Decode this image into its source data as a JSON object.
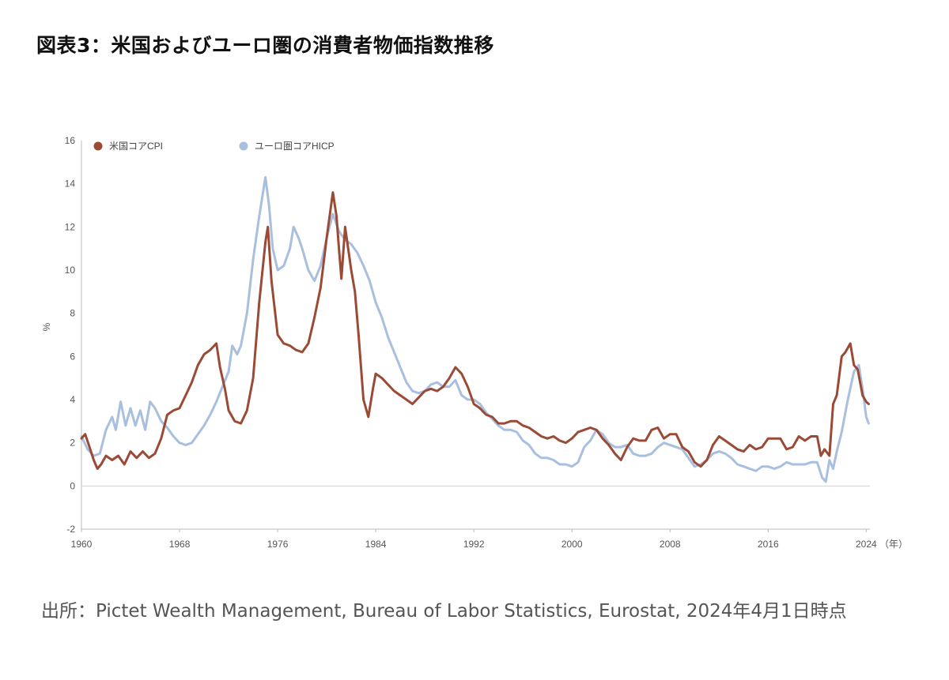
{
  "title": "図表3：米国およびユーロ圏の消費者物価指数推移",
  "source": "出所：Pictet Wealth Management, Bureau of Labor Statistics, Eurostat, 2024年4月1日時点",
  "chart_data": {
    "type": "line",
    "title": "図表3：米国およびユーロ圏の消費者物価指数推移",
    "ylabel": "%",
    "xlabel": "",
    "x_unit_label": "（年）",
    "ylim": [
      -2,
      16
    ],
    "xlim": [
      1960,
      2024.3
    ],
    "y_ticks": [
      -2,
      0,
      2,
      4,
      6,
      8,
      10,
      12,
      14,
      16
    ],
    "x_ticks": [
      1960,
      1968,
      1976,
      1984,
      1992,
      2000,
      2008,
      2016,
      2024
    ],
    "legend_position": "top-left",
    "grid": false,
    "series": [
      {
        "name": "米国コアCPI",
        "color": "#9a4a35",
        "points": [
          [
            1960.0,
            2.2
          ],
          [
            1960.3,
            2.4
          ],
          [
            1960.6,
            1.9
          ],
          [
            1961.0,
            1.2
          ],
          [
            1961.3,
            0.8
          ],
          [
            1961.6,
            1.0
          ],
          [
            1962.0,
            1.4
          ],
          [
            1962.5,
            1.2
          ],
          [
            1963.0,
            1.4
          ],
          [
            1963.5,
            1.0
          ],
          [
            1964.0,
            1.6
          ],
          [
            1964.5,
            1.3
          ],
          [
            1965.0,
            1.6
          ],
          [
            1965.5,
            1.3
          ],
          [
            1966.0,
            1.5
          ],
          [
            1966.5,
            2.2
          ],
          [
            1967.0,
            3.3
          ],
          [
            1967.5,
            3.5
          ],
          [
            1968.0,
            3.6
          ],
          [
            1968.5,
            4.2
          ],
          [
            1969.0,
            4.8
          ],
          [
            1969.5,
            5.6
          ],
          [
            1970.0,
            6.1
          ],
          [
            1970.5,
            6.3
          ],
          [
            1971.0,
            6.6
          ],
          [
            1971.3,
            5.5
          ],
          [
            1971.7,
            4.5
          ],
          [
            1972.0,
            3.5
          ],
          [
            1972.5,
            3.0
          ],
          [
            1973.0,
            2.9
          ],
          [
            1973.5,
            3.5
          ],
          [
            1974.0,
            5.0
          ],
          [
            1974.5,
            8.5
          ],
          [
            1975.0,
            11.3
          ],
          [
            1975.2,
            12.0
          ],
          [
            1975.5,
            9.5
          ],
          [
            1976.0,
            7.0
          ],
          [
            1976.5,
            6.6
          ],
          [
            1977.0,
            6.5
          ],
          [
            1977.5,
            6.3
          ],
          [
            1978.0,
            6.2
          ],
          [
            1978.5,
            6.6
          ],
          [
            1979.0,
            7.8
          ],
          [
            1979.5,
            9.2
          ],
          [
            1980.0,
            11.5
          ],
          [
            1980.5,
            13.6
          ],
          [
            1980.8,
            12.5
          ],
          [
            1981.0,
            11.0
          ],
          [
            1981.2,
            9.6
          ],
          [
            1981.5,
            12.0
          ],
          [
            1982.0,
            10.0
          ],
          [
            1982.3,
            9.0
          ],
          [
            1982.6,
            7.0
          ],
          [
            1983.0,
            4.0
          ],
          [
            1983.4,
            3.2
          ],
          [
            1983.8,
            4.6
          ],
          [
            1984.0,
            5.2
          ],
          [
            1984.5,
            5.0
          ],
          [
            1985.0,
            4.7
          ],
          [
            1985.5,
            4.4
          ],
          [
            1986.0,
            4.2
          ],
          [
            1986.5,
            4.0
          ],
          [
            1987.0,
            3.8
          ],
          [
            1987.5,
            4.1
          ],
          [
            1988.0,
            4.4
          ],
          [
            1988.5,
            4.5
          ],
          [
            1989.0,
            4.4
          ],
          [
            1989.5,
            4.6
          ],
          [
            1990.0,
            5.0
          ],
          [
            1990.5,
            5.5
          ],
          [
            1991.0,
            5.2
          ],
          [
            1991.5,
            4.6
          ],
          [
            1992.0,
            3.8
          ],
          [
            1992.5,
            3.6
          ],
          [
            1993.0,
            3.3
          ],
          [
            1993.5,
            3.2
          ],
          [
            1994.0,
            2.9
          ],
          [
            1994.5,
            2.9
          ],
          [
            1995.0,
            3.0
          ],
          [
            1995.5,
            3.0
          ],
          [
            1996.0,
            2.8
          ],
          [
            1996.5,
            2.7
          ],
          [
            1997.0,
            2.5
          ],
          [
            1997.5,
            2.3
          ],
          [
            1998.0,
            2.2
          ],
          [
            1998.5,
            2.3
          ],
          [
            1999.0,
            2.1
          ],
          [
            1999.5,
            2.0
          ],
          [
            2000.0,
            2.2
          ],
          [
            2000.5,
            2.5
          ],
          [
            2001.0,
            2.6
          ],
          [
            2001.5,
            2.7
          ],
          [
            2002.0,
            2.6
          ],
          [
            2002.5,
            2.2
          ],
          [
            2003.0,
            1.9
          ],
          [
            2003.5,
            1.5
          ],
          [
            2004.0,
            1.2
          ],
          [
            2004.5,
            1.8
          ],
          [
            2005.0,
            2.2
          ],
          [
            2005.5,
            2.1
          ],
          [
            2006.0,
            2.1
          ],
          [
            2006.5,
            2.6
          ],
          [
            2007.0,
            2.7
          ],
          [
            2007.5,
            2.2
          ],
          [
            2008.0,
            2.4
          ],
          [
            2008.5,
            2.4
          ],
          [
            2009.0,
            1.8
          ],
          [
            2009.5,
            1.6
          ],
          [
            2010.0,
            1.1
          ],
          [
            2010.5,
            0.9
          ],
          [
            2011.0,
            1.2
          ],
          [
            2011.5,
            1.9
          ],
          [
            2012.0,
            2.3
          ],
          [
            2012.5,
            2.1
          ],
          [
            2013.0,
            1.9
          ],
          [
            2013.5,
            1.7
          ],
          [
            2014.0,
            1.6
          ],
          [
            2014.5,
            1.9
          ],
          [
            2015.0,
            1.7
          ],
          [
            2015.5,
            1.8
          ],
          [
            2016.0,
            2.2
          ],
          [
            2016.5,
            2.2
          ],
          [
            2017.0,
            2.2
          ],
          [
            2017.5,
            1.7
          ],
          [
            2018.0,
            1.8
          ],
          [
            2018.5,
            2.3
          ],
          [
            2019.0,
            2.1
          ],
          [
            2019.5,
            2.3
          ],
          [
            2020.0,
            2.3
          ],
          [
            2020.3,
            1.4
          ],
          [
            2020.6,
            1.7
          ],
          [
            2021.0,
            1.4
          ],
          [
            2021.3,
            3.8
          ],
          [
            2021.6,
            4.2
          ],
          [
            2022.0,
            6.0
          ],
          [
            2022.3,
            6.2
          ],
          [
            2022.7,
            6.6
          ],
          [
            2023.0,
            5.6
          ],
          [
            2023.3,
            5.4
          ],
          [
            2023.7,
            4.2
          ],
          [
            2024.0,
            3.9
          ],
          [
            2024.2,
            3.8
          ]
        ]
      },
      {
        "name": "ユーロ圏コアHICP",
        "color": "#a9bfe0",
        "points": [
          [
            1960.0,
            2.3
          ],
          [
            1960.5,
            1.7
          ],
          [
            1961.0,
            1.4
          ],
          [
            1961.5,
            1.5
          ],
          [
            1962.0,
            2.6
          ],
          [
            1962.5,
            3.2
          ],
          [
            1962.8,
            2.6
          ],
          [
            1963.2,
            3.9
          ],
          [
            1963.6,
            2.8
          ],
          [
            1964.0,
            3.6
          ],
          [
            1964.4,
            2.8
          ],
          [
            1964.8,
            3.5
          ],
          [
            1965.2,
            2.6
          ],
          [
            1965.6,
            3.9
          ],
          [
            1966.0,
            3.6
          ],
          [
            1966.5,
            3.0
          ],
          [
            1967.0,
            2.7
          ],
          [
            1967.5,
            2.3
          ],
          [
            1968.0,
            2.0
          ],
          [
            1968.5,
            1.9
          ],
          [
            1969.0,
            2.0
          ],
          [
            1969.5,
            2.4
          ],
          [
            1970.0,
            2.8
          ],
          [
            1970.5,
            3.3
          ],
          [
            1971.0,
            3.9
          ],
          [
            1971.5,
            4.6
          ],
          [
            1972.0,
            5.3
          ],
          [
            1972.3,
            6.5
          ],
          [
            1972.7,
            6.1
          ],
          [
            1973.0,
            6.5
          ],
          [
            1973.5,
            8.0
          ],
          [
            1974.0,
            10.5
          ],
          [
            1974.5,
            12.5
          ],
          [
            1975.0,
            14.3
          ],
          [
            1975.3,
            13.0
          ],
          [
            1975.6,
            11.0
          ],
          [
            1976.0,
            10.0
          ],
          [
            1976.5,
            10.2
          ],
          [
            1977.0,
            11.0
          ],
          [
            1977.3,
            12.0
          ],
          [
            1977.7,
            11.5
          ],
          [
            1978.0,
            11.0
          ],
          [
            1978.5,
            10.0
          ],
          [
            1979.0,
            9.5
          ],
          [
            1979.5,
            10.2
          ],
          [
            1980.0,
            11.5
          ],
          [
            1980.5,
            12.6
          ],
          [
            1981.0,
            11.8
          ],
          [
            1981.5,
            11.4
          ],
          [
            1982.0,
            11.2
          ],
          [
            1982.5,
            10.8
          ],
          [
            1983.0,
            10.2
          ],
          [
            1983.5,
            9.5
          ],
          [
            1984.0,
            8.5
          ],
          [
            1984.5,
            7.8
          ],
          [
            1985.0,
            6.9
          ],
          [
            1985.5,
            6.2
          ],
          [
            1986.0,
            5.5
          ],
          [
            1986.5,
            4.8
          ],
          [
            1987.0,
            4.4
          ],
          [
            1987.5,
            4.3
          ],
          [
            1988.0,
            4.4
          ],
          [
            1988.5,
            4.7
          ],
          [
            1989.0,
            4.8
          ],
          [
            1989.5,
            4.6
          ],
          [
            1990.0,
            4.6
          ],
          [
            1990.5,
            4.9
          ],
          [
            1991.0,
            4.2
          ],
          [
            1991.5,
            4.0
          ],
          [
            1992.0,
            4.0
          ],
          [
            1992.5,
            3.8
          ],
          [
            1993.0,
            3.4
          ],
          [
            1993.5,
            3.1
          ],
          [
            1994.0,
            2.8
          ],
          [
            1994.5,
            2.6
          ],
          [
            1995.0,
            2.6
          ],
          [
            1995.5,
            2.5
          ],
          [
            1996.0,
            2.1
          ],
          [
            1996.5,
            1.9
          ],
          [
            1997.0,
            1.5
          ],
          [
            1997.5,
            1.3
          ],
          [
            1998.0,
            1.3
          ],
          [
            1998.5,
            1.2
          ],
          [
            1999.0,
            1.0
          ],
          [
            1999.5,
            1.0
          ],
          [
            2000.0,
            0.9
          ],
          [
            2000.5,
            1.1
          ],
          [
            2001.0,
            1.8
          ],
          [
            2001.5,
            2.1
          ],
          [
            2002.0,
            2.6
          ],
          [
            2002.5,
            2.4
          ],
          [
            2003.0,
            2.0
          ],
          [
            2003.5,
            1.8
          ],
          [
            2004.0,
            1.8
          ],
          [
            2004.5,
            1.9
          ],
          [
            2005.0,
            1.5
          ],
          [
            2005.5,
            1.4
          ],
          [
            2006.0,
            1.4
          ],
          [
            2006.5,
            1.5
          ],
          [
            2007.0,
            1.8
          ],
          [
            2007.5,
            2.0
          ],
          [
            2008.0,
            1.9
          ],
          [
            2008.5,
            1.8
          ],
          [
            2009.0,
            1.7
          ],
          [
            2009.5,
            1.3
          ],
          [
            2010.0,
            0.9
          ],
          [
            2010.5,
            1.0
          ],
          [
            2011.0,
            1.2
          ],
          [
            2011.5,
            1.5
          ],
          [
            2012.0,
            1.6
          ],
          [
            2012.5,
            1.5
          ],
          [
            2013.0,
            1.3
          ],
          [
            2013.5,
            1.0
          ],
          [
            2014.0,
            0.9
          ],
          [
            2014.5,
            0.8
          ],
          [
            2015.0,
            0.7
          ],
          [
            2015.5,
            0.9
          ],
          [
            2016.0,
            0.9
          ],
          [
            2016.5,
            0.8
          ],
          [
            2017.0,
            0.9
          ],
          [
            2017.5,
            1.1
          ],
          [
            2018.0,
            1.0
          ],
          [
            2018.5,
            1.0
          ],
          [
            2019.0,
            1.0
          ],
          [
            2019.5,
            1.1
          ],
          [
            2020.0,
            1.1
          ],
          [
            2020.4,
            0.4
          ],
          [
            2020.7,
            0.2
          ],
          [
            2021.0,
            1.2
          ],
          [
            2021.3,
            0.8
          ],
          [
            2021.6,
            1.6
          ],
          [
            2022.0,
            2.5
          ],
          [
            2022.5,
            4.0
          ],
          [
            2023.0,
            5.3
          ],
          [
            2023.4,
            5.6
          ],
          [
            2023.7,
            4.5
          ],
          [
            2024.0,
            3.2
          ],
          [
            2024.2,
            2.9
          ]
        ]
      }
    ]
  }
}
